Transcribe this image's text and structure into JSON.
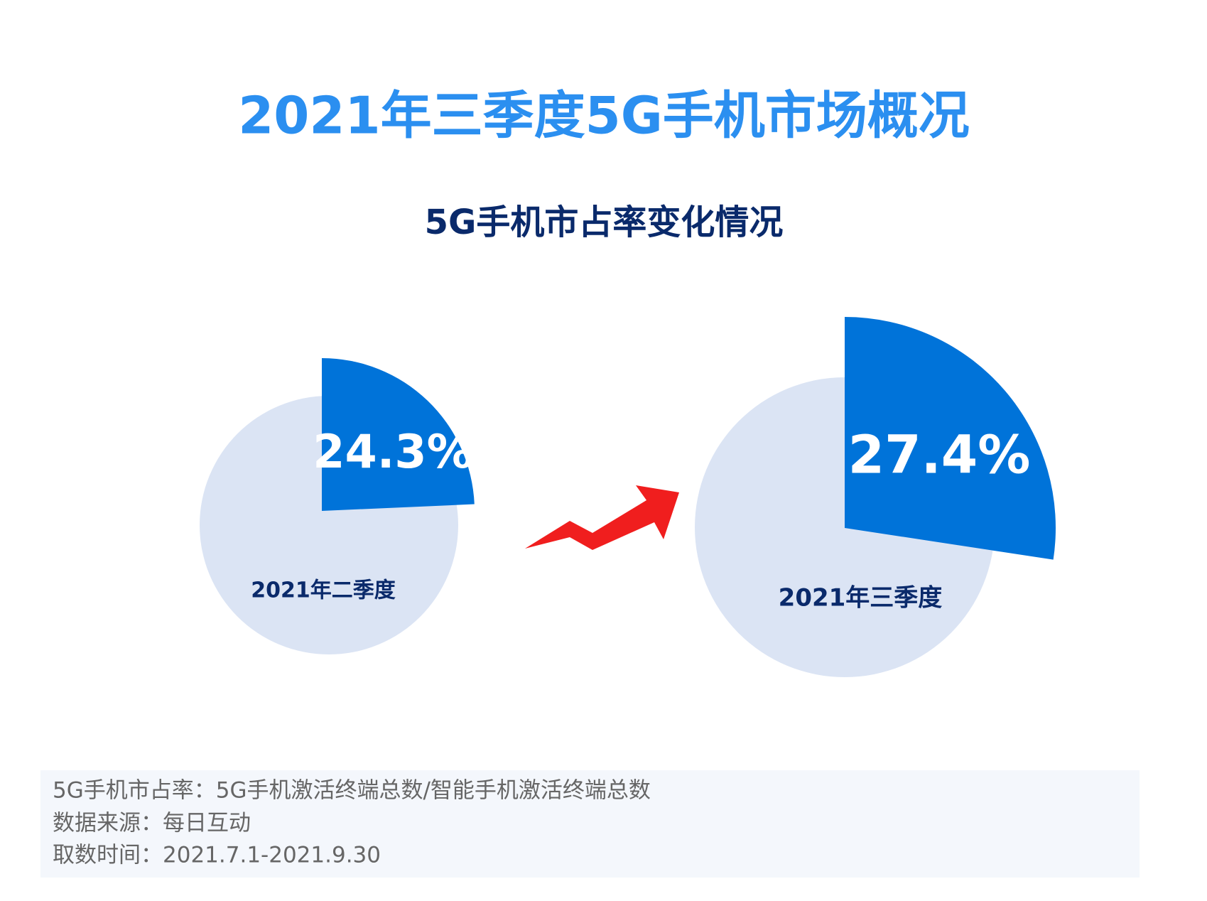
{
  "title": "2021年三季度5G手机市场概况",
  "subtitle": "5G手机市占率变化情况",
  "chart_data": [
    {
      "type": "pie",
      "title": "2021年二季度",
      "values": [
        24.3
      ],
      "value_labels": [
        "24.3%"
      ],
      "color": "#0073d9",
      "base_color": "#dbe4f4"
    },
    {
      "type": "pie",
      "title": "2021年三季度",
      "values": [
        27.4
      ],
      "value_labels": [
        "27.4%"
      ],
      "color": "#0073d9",
      "base_color": "#dbe4f4"
    }
  ],
  "notes": [
    "5G手机市占率：5G手机激活终端总数/智能手机激活终端总数",
    "数据来源：每日互动",
    "取数时间：2021.7.1-2021.9.30"
  ]
}
